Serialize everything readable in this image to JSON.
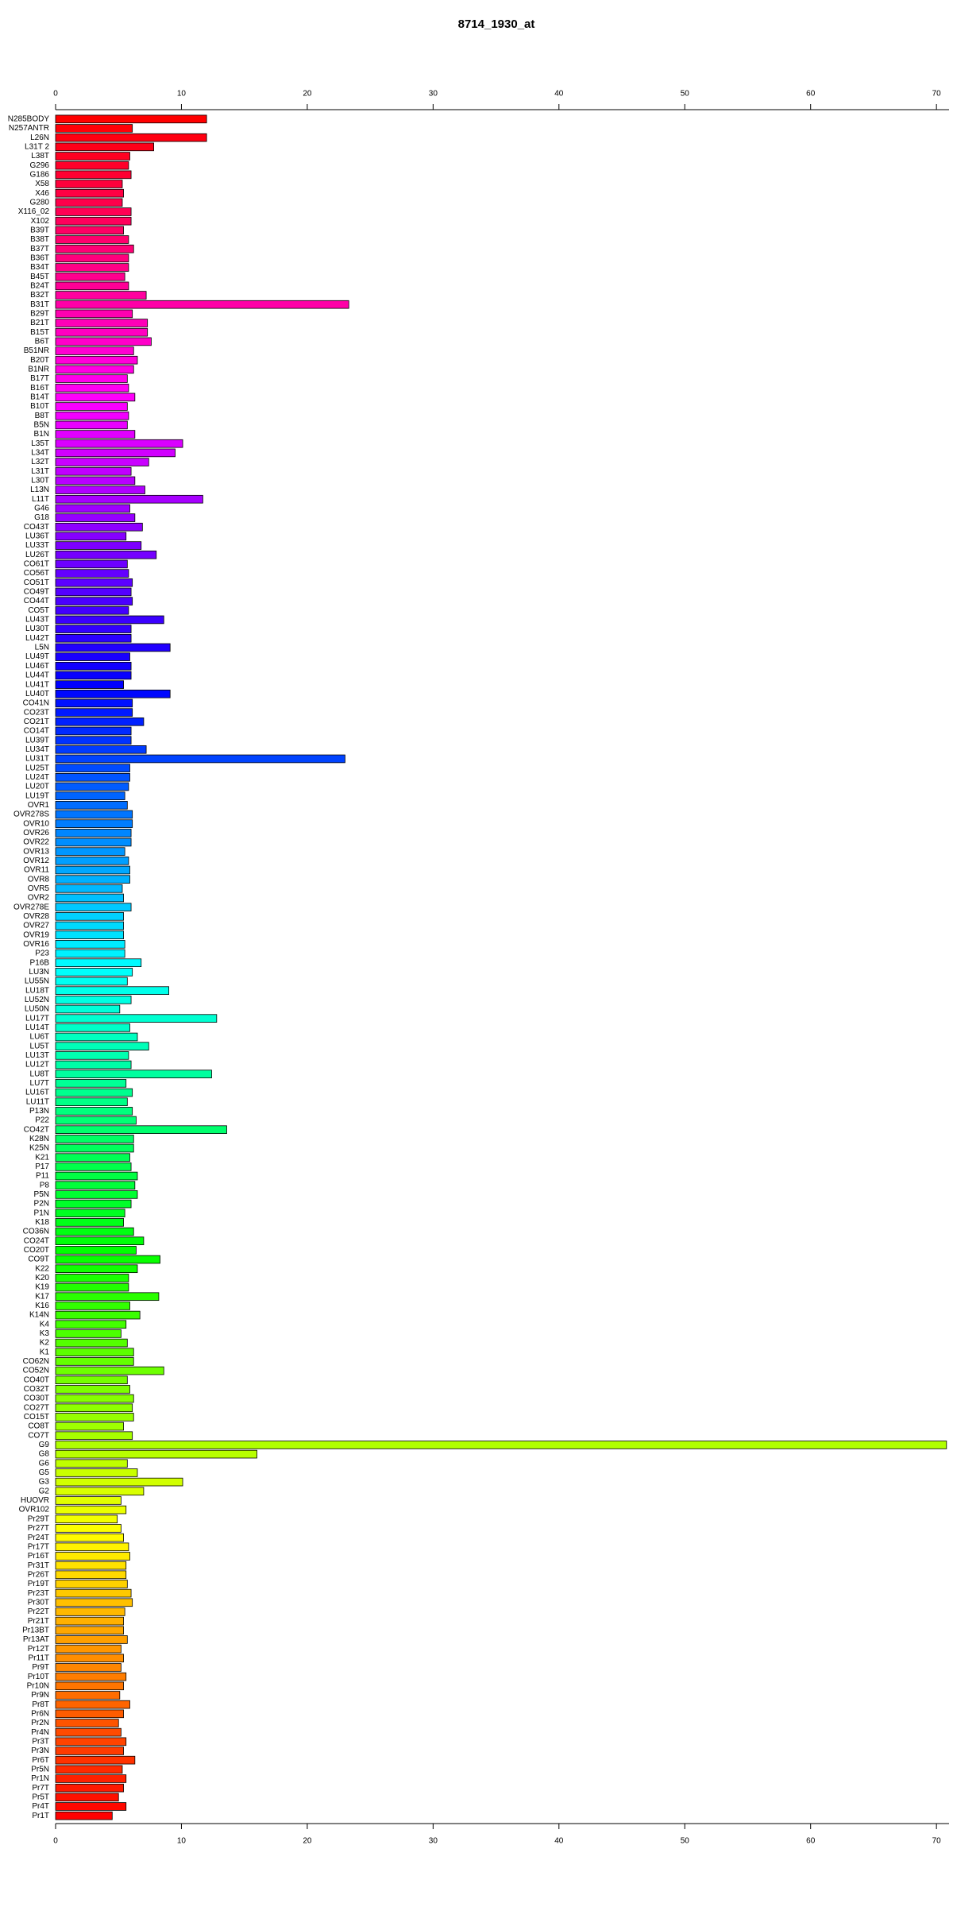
{
  "chart_data": {
    "type": "barh",
    "title": "8714_1930_at",
    "categories": [
      "N285BODY",
      "N257ANTR",
      "L26N",
      "L31T 2",
      "L38T",
      "G296",
      "G186",
      "X58",
      "X46",
      "G280",
      "X116_02",
      "X102",
      "B39T",
      "B38T",
      "B37T",
      "B36T",
      "B34T",
      "B45T",
      "B24T",
      "B32T",
      "B31T",
      "B29T",
      "B21T",
      "B15T",
      "B6T",
      "B51NR",
      "B20T",
      "B1NR",
      "B17T",
      "B16T",
      "B14T",
      "B10T",
      "B8T",
      "B5N",
      "B1N",
      "L35T",
      "L34T",
      "L32T",
      "L31T",
      "L30T",
      "L13N",
      "L11T",
      "G46",
      "G18",
      "CO43T",
      "LU36T",
      "LU33T",
      "LU26T",
      "CO61T",
      "CO56T",
      "CO51T",
      "CO49T",
      "CO44T",
      "CO5T",
      "LU43T",
      "LU30T",
      "LU42T",
      "L5N",
      "LU49T",
      "LU46T",
      "LU44T",
      "LU41T",
      "LU40T",
      "CO41N",
      "CO23T",
      "CO21T",
      "CO14T",
      "LU39T",
      "LU34T",
      "LU31T",
      "LU25T",
      "LU24T",
      "LU20T",
      "LU19T",
      "OVR1",
      "OVR278S",
      "OVR10",
      "OVR26",
      "OVR22",
      "OVR13",
      "OVR12",
      "OVR11",
      "OVR8",
      "OVR5",
      "OVR2",
      "OVR278E",
      "OVR28",
      "OVR27",
      "OVR19",
      "OVR16",
      "P23",
      "P16B",
      "LU3N",
      "LU55N",
      "LU18T",
      "LU52N",
      "LU50N",
      "LU17T",
      "LU14T",
      "LU6T",
      "LU5T",
      "LU13T",
      "LU12T",
      "LU8T",
      "LU7T",
      "LU16T",
      "LU11T",
      "P13N",
      "P22",
      "CO42T",
      "K28N",
      "K25N",
      "K21",
      "P17",
      "P11",
      "P8",
      "P5N",
      "P2N",
      "P1N",
      "K18",
      "CO36N",
      "CO24T",
      "CO20T",
      "CO9T",
      "K22",
      "K20",
      "K19",
      "K17",
      "K16",
      "K14N",
      "K4",
      "K3",
      "K2",
      "K1",
      "CO62N",
      "CO52N",
      "CO40T",
      "CO32T",
      "CO30T",
      "CO27T",
      "CO15T",
      "CO8T",
      "CO7T",
      "G9",
      "G8",
      "G6",
      "G5",
      "G3",
      "G2",
      "HUOVR",
      "OVR102",
      "Pr29T",
      "Pr27T",
      "Pr24T",
      "Pr17T",
      "Pr16T",
      "Pr31T",
      "Pr26T",
      "Pr19T",
      "Pr23T",
      "Pr30T",
      "Pr22T",
      "Pr21T",
      "Pr13BT",
      "Pr13AT",
      "Pr12T",
      "Pr11T",
      "Pr9T",
      "Pr10T",
      "Pr10N",
      "Pr9N",
      "Pr8T",
      "Pr6N",
      "Pr2N",
      "Pr4N",
      "Pr3T",
      "Pr3N",
      "Pr6T",
      "Pr5N",
      "Pr1N",
      "Pr7T",
      "Pr5T",
      "Pr4T",
      "Pr1T"
    ],
    "values": [
      12.0,
      6.1,
      12.0,
      7.8,
      5.9,
      5.8,
      6.0,
      5.3,
      5.4,
      5.3,
      6.0,
      6.0,
      5.4,
      5.8,
      6.2,
      5.8,
      5.8,
      5.5,
      5.8,
      7.2,
      23.3,
      6.1,
      7.3,
      7.3,
      7.6,
      6.2,
      6.5,
      6.2,
      5.7,
      5.8,
      6.3,
      5.7,
      5.8,
      5.7,
      6.3,
      10.1,
      9.5,
      7.4,
      6.0,
      6.3,
      7.1,
      11.7,
      5.9,
      6.3,
      6.9,
      5.6,
      6.8,
      8.0,
      5.7,
      5.8,
      6.1,
      6.0,
      6.1,
      5.8,
      8.6,
      6.0,
      6.0,
      9.1,
      5.9,
      6.0,
      6.0,
      5.4,
      9.1,
      6.1,
      6.1,
      7.0,
      6.0,
      6.0,
      7.2,
      23.0,
      5.9,
      5.9,
      5.8,
      5.5,
      5.7,
      6.1,
      6.1,
      6.0,
      6.0,
      5.5,
      5.8,
      5.9,
      5.9,
      5.3,
      5.4,
      6.0,
      5.4,
      5.4,
      5.4,
      5.5,
      5.5,
      6.8,
      6.1,
      5.7,
      9.0,
      6.0,
      5.1,
      12.8,
      5.9,
      6.5,
      7.4,
      5.8,
      6.0,
      12.4,
      5.6,
      6.1,
      5.7,
      6.1,
      6.4,
      13.6,
      6.2,
      6.2,
      5.9,
      6.0,
      6.5,
      6.3,
      6.5,
      6.0,
      5.5,
      5.4,
      6.2,
      7.0,
      6.4,
      8.3,
      6.5,
      5.8,
      5.8,
      8.2,
      5.9,
      6.7,
      5.6,
      5.2,
      5.7,
      6.2,
      6.2,
      8.6,
      5.7,
      5.9,
      6.2,
      6.1,
      6.2,
      5.4,
      6.1,
      70.8,
      16.0,
      5.7,
      6.5,
      10.1,
      7.0,
      5.2,
      5.6,
      4.9,
      5.2,
      5.4,
      5.8,
      5.9,
      5.6,
      5.6,
      5.7,
      6.0,
      6.1,
      5.5,
      5.4,
      5.4,
      5.7,
      5.2,
      5.4,
      5.2,
      5.6,
      5.4,
      5.1,
      5.9,
      5.4,
      5.0,
      5.2,
      5.6,
      5.4,
      6.3,
      5.3,
      5.6,
      5.4,
      5.0,
      5.6,
      4.5
    ],
    "colors": [
      "#ff0000",
      "#ff00ff",
      "#0000ff",
      "#00ffff",
      "#00ff00",
      "#ffff00",
      "#ff0000"
    ],
    "xlim": [
      0,
      71
    ],
    "xticks": [
      0,
      10,
      20,
      30,
      40,
      50,
      60,
      70
    ]
  }
}
